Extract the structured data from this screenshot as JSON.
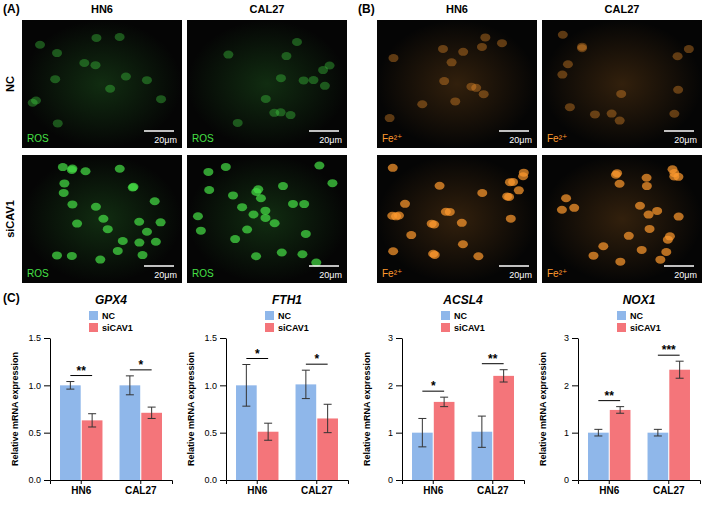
{
  "panels": [
    {
      "label": "(A)",
      "columns": [
        "HN6",
        "CAL27"
      ],
      "rows": [
        "NC",
        "siCAV1"
      ],
      "stain": "ROS",
      "color": "#46e046",
      "scale_bar": "20μm"
    },
    {
      "label": "(B)",
      "columns": [
        "HN6",
        "CAL27"
      ],
      "stain": "Fe²⁺",
      "color": "#ff9a2e",
      "scale_bar": "20μm"
    }
  ],
  "panel_c": {
    "label": "(C)"
  },
  "chart_data": [
    {
      "type": "bar",
      "title": "GPX4",
      "y_label": "Relative mRNA expression",
      "categories": [
        "HN6",
        "CAL27"
      ],
      "series": [
        {
          "name": "NC",
          "color": "#8fb7ea",
          "values": [
            1.0,
            1.0
          ],
          "errors": [
            0.04,
            0.1
          ]
        },
        {
          "name": "siCAV1",
          "color": "#f4757a",
          "values": [
            0.63,
            0.71
          ],
          "errors": [
            0.07,
            0.06
          ]
        }
      ],
      "significance": [
        "**",
        "*"
      ],
      "ylim": [
        0,
        1.5
      ],
      "yticks": [
        {
          "value": 0,
          "label": "0.0"
        },
        0.5,
        {
          "value": 1,
          "label": "1.0"
        },
        1.5
      ],
      "legend": "top"
    },
    {
      "type": "bar",
      "title": "FTH1",
      "y_label": "Relative mRNA expression",
      "categories": [
        "HN6",
        "CAL27"
      ],
      "series": [
        {
          "name": "NC",
          "color": "#8fb7ea",
          "values": [
            1.0,
            1.01
          ],
          "errors": [
            0.22,
            0.15
          ]
        },
        {
          "name": "siCAV1",
          "color": "#f4757a",
          "values": [
            0.51,
            0.65
          ],
          "errors": [
            0.09,
            0.15
          ]
        }
      ],
      "significance": [
        "*",
        "*"
      ],
      "ylim": [
        0,
        1.5
      ],
      "yticks": [
        {
          "value": 0,
          "label": "0.0"
        },
        0.5,
        {
          "value": 1,
          "label": "1.0"
        },
        1.5
      ],
      "legend": "top"
    },
    {
      "type": "bar",
      "title": "ACSL4",
      "y_label": "Relative mRNA expression",
      "categories": [
        "HN6",
        "CAL27"
      ],
      "series": [
        {
          "name": "NC",
          "color": "#8fb7ea",
          "values": [
            1.0,
            1.02
          ],
          "errors": [
            0.3,
            0.33
          ]
        },
        {
          "name": "siCAV1",
          "color": "#f4757a",
          "values": [
            1.65,
            2.2
          ],
          "errors": [
            0.1,
            0.13
          ]
        }
      ],
      "significance": [
        "*",
        "**"
      ],
      "ylim": [
        0,
        3
      ],
      "yticks": [
        0,
        1,
        2,
        3
      ],
      "legend": "top"
    },
    {
      "type": "bar",
      "title": "NOX1",
      "y_label": "Relative mRNA expression",
      "categories": [
        "HN6",
        "CAL27"
      ],
      "series": [
        {
          "name": "NC",
          "color": "#8fb7ea",
          "values": [
            1.0,
            1.0
          ],
          "errors": [
            0.07,
            0.07
          ]
        },
        {
          "name": "siCAV1",
          "color": "#f4757a",
          "values": [
            1.48,
            2.33
          ],
          "errors": [
            0.07,
            0.18
          ]
        }
      ],
      "significance": [
        "**",
        "***"
      ],
      "ylim": [
        0,
        3
      ],
      "yticks": [
        0,
        1,
        2,
        3
      ],
      "legend": "top"
    }
  ]
}
